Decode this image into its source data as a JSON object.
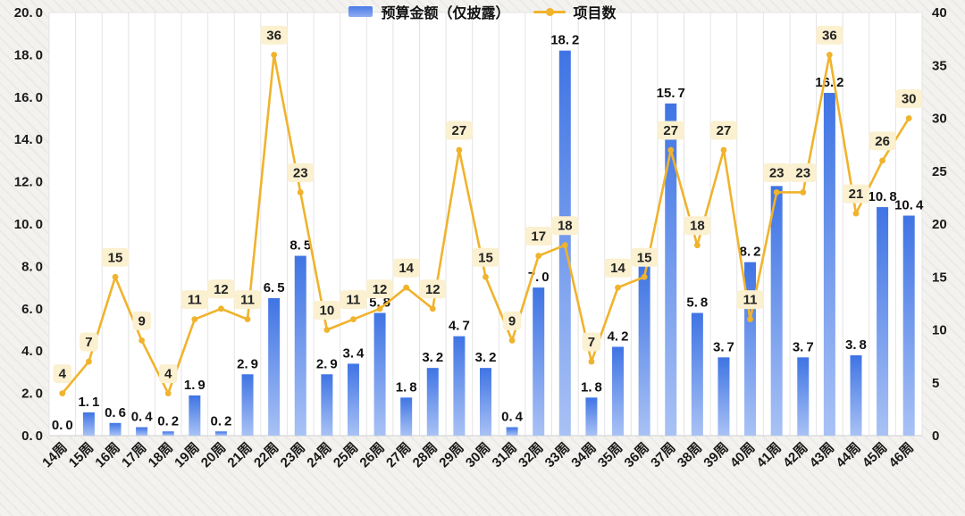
{
  "chart_data": {
    "type": "bar+line combo",
    "categories": [
      "14周",
      "15周",
      "16周",
      "17周",
      "18周",
      "19周",
      "20周",
      "21周",
      "22周",
      "23周",
      "24周",
      "25周",
      "26周",
      "27周",
      "28周",
      "29周",
      "30周",
      "31周",
      "32周",
      "33周",
      "34周",
      "35周",
      "36周",
      "37周",
      "38周",
      "39周",
      "40周",
      "41周",
      "42周",
      "43周",
      "44周",
      "45周",
      "46周"
    ],
    "series": [
      {
        "name": "预算金额（仅披露）",
        "type": "bar",
        "axis": "left",
        "values": [
          0.0,
          1.1,
          0.6,
          0.4,
          0.2,
          1.9,
          0.2,
          2.9,
          6.5,
          8.5,
          2.9,
          3.4,
          5.8,
          1.8,
          3.2,
          4.7,
          3.2,
          0.4,
          7.0,
          18.2,
          1.8,
          4.2,
          8.1,
          15.7,
          5.8,
          3.7,
          8.2,
          11.8,
          3.7,
          16.2,
          3.8,
          10.8,
          10.4
        ]
      },
      {
        "name": "项目数",
        "type": "line",
        "axis": "right",
        "values": [
          4,
          7,
          15,
          9,
          4,
          11,
          12,
          11,
          36,
          23,
          10,
          11,
          12,
          14,
          12,
          27,
          15,
          9,
          17,
          18,
          7,
          14,
          15,
          27,
          18,
          27,
          11,
          23,
          23,
          36,
          21,
          26,
          30
        ]
      }
    ],
    "left_axis": {
      "min": 0,
      "max": 20,
      "step": 2,
      "ticks": [
        0,
        2,
        4,
        6,
        8,
        10,
        12,
        14,
        16,
        18,
        20
      ],
      "decimals": 1
    },
    "right_axis": {
      "min": 0,
      "max": 40,
      "step": 5,
      "ticks": [
        0,
        5,
        10,
        15,
        20,
        25,
        30,
        35,
        40
      ],
      "decimals": 0
    },
    "grid": "vertical category separators, no horizontal gridlines",
    "legend_position": "bottom-center",
    "colors": {
      "bar_top": "#3f74e4",
      "bar_bottom": "#a9c2f5",
      "line": "#f0b32c",
      "badge_bg": "#fbf0cf",
      "label_text": "#111111",
      "axis_text": "#1a1a1a",
      "gridline": "#e4e4e4",
      "plot_bg": "#ffffff"
    }
  }
}
